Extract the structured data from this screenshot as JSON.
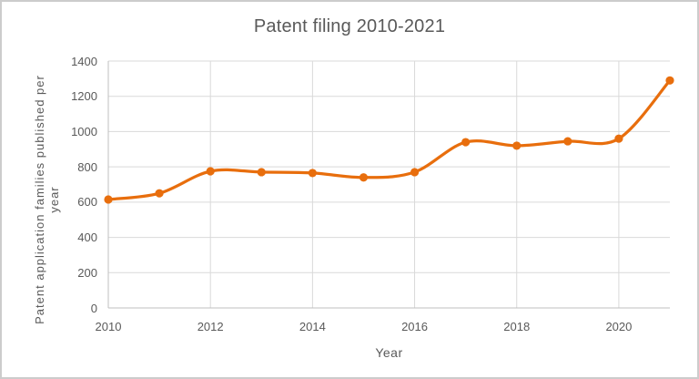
{
  "chart_data": {
    "type": "line",
    "title": "Patent filing 2010-2021",
    "xlabel": "Year",
    "ylabel": "Patent application families published per year",
    "ylabel_lines": [
      "Patent application families published per",
      "year"
    ],
    "x": [
      2010,
      2011,
      2012,
      2013,
      2014,
      2015,
      2016,
      2017,
      2018,
      2019,
      2020,
      2021
    ],
    "series": [
      {
        "name": "Patent application families published per year",
        "values": [
          615,
          650,
          775,
          770,
          765,
          740,
          770,
          940,
          920,
          945,
          960,
          1290
        ]
      }
    ],
    "ylim": [
      0,
      1400
    ],
    "yticks": [
      0,
      200,
      400,
      600,
      800,
      1000,
      1200,
      1400
    ],
    "xticks": [
      2010,
      2012,
      2014,
      2016,
      2018,
      2020
    ],
    "xgridlines": [
      2012,
      2014,
      2016,
      2018,
      2020
    ],
    "grid": true,
    "smooth_line": true,
    "legend_position": "none",
    "colors": {
      "series_line": "#e86e0d",
      "marker_fill": "#e86e0d",
      "gridline": "#d9d9d9",
      "axis_line": "#bfbfbf",
      "text": "#595959",
      "background": "#ffffff"
    }
  }
}
